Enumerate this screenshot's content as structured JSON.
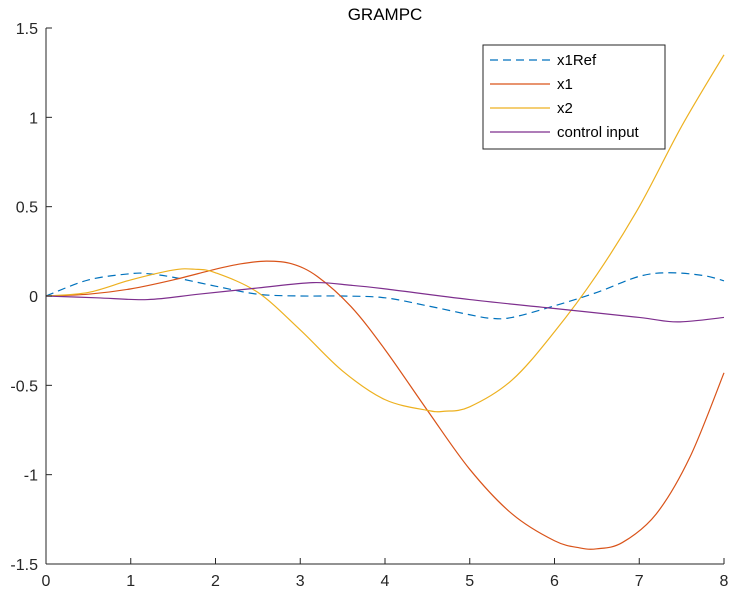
{
  "chart_data": {
    "type": "line",
    "title": "GRAMPC",
    "xlabel": "",
    "ylabel": "",
    "xlim": [
      0,
      8
    ],
    "ylim": [
      -1.5,
      1.5
    ],
    "xticks": [
      "0",
      "1",
      "2",
      "3",
      "4",
      "5",
      "6",
      "7",
      "8"
    ],
    "yticks": [
      "1.5",
      "1",
      "0.5",
      "0",
      "-0.5",
      "-1",
      "-1.5"
    ],
    "grid": false,
    "legend_position": "top-right",
    "series": [
      {
        "name": "x1Ref",
        "color": "#0072BD",
        "dash": "dashed",
        "x": [
          0,
          0.5,
          1,
          1.2,
          1.5,
          2,
          2.5,
          3,
          3.5,
          4,
          4.5,
          5,
          5.25,
          5.5,
          6,
          6.5,
          7,
          7.35,
          7.75,
          8
        ],
        "y": [
          0,
          0.09,
          0.125,
          0.125,
          0.105,
          0.055,
          0.01,
          0,
          0,
          -0.01,
          -0.055,
          -0.105,
          -0.125,
          -0.12,
          -0.055,
          0.02,
          0.11,
          0.13,
          0.115,
          0.085
        ]
      },
      {
        "name": "x1",
        "color": "#D95319",
        "dash": "solid",
        "x": [
          0,
          0.5,
          1,
          1.5,
          2,
          2.3,
          2.6,
          2.9,
          3.2,
          3.6,
          4,
          4.5,
          5,
          5.5,
          6,
          6.3,
          6.5,
          6.8,
          7.2,
          7.6,
          8
        ],
        "y": [
          0,
          0.01,
          0.04,
          0.09,
          0.15,
          0.18,
          0.195,
          0.18,
          0.11,
          -0.06,
          -0.3,
          -0.64,
          -0.97,
          -1.22,
          -1.37,
          -1.41,
          -1.415,
          -1.38,
          -1.22,
          -0.9,
          -0.43
        ]
      },
      {
        "name": "x2",
        "color": "#EDB120",
        "dash": "solid",
        "x": [
          0,
          0.5,
          1,
          1.5,
          1.75,
          2,
          2.5,
          3,
          3.5,
          4,
          4.5,
          4.7,
          5,
          5.5,
          6,
          6.5,
          7,
          7.5,
          8
        ],
        "y": [
          0,
          0.02,
          0.09,
          0.145,
          0.15,
          0.13,
          0.02,
          -0.19,
          -0.42,
          -0.58,
          -0.64,
          -0.645,
          -0.62,
          -0.47,
          -0.2,
          0.12,
          0.5,
          0.95,
          1.35
        ]
      },
      {
        "name": "control input",
        "color": "#7E2F8E",
        "dash": "solid",
        "x": [
          0,
          0.6,
          1.2,
          1.8,
          2.5,
          3.15,
          3.6,
          4,
          5,
          6,
          7,
          7.45,
          8
        ],
        "y": [
          0,
          -0.01,
          -0.02,
          0.01,
          0.045,
          0.075,
          0.06,
          0.04,
          -0.02,
          -0.07,
          -0.12,
          -0.145,
          -0.12
        ]
      }
    ]
  }
}
